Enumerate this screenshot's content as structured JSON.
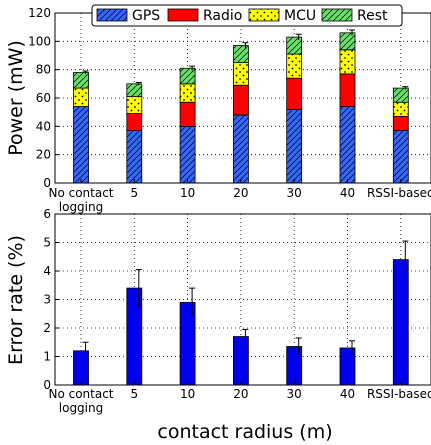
{
  "chart_data": [
    {
      "type": "bar",
      "stacked": true,
      "categories": [
        "No contact\nlogging",
        "5",
        "10",
        "20",
        "30",
        "40",
        "RSSI-based"
      ],
      "series": [
        {
          "name": "GPS",
          "color": "#3366ff",
          "hatch": "diagonal",
          "values": [
            54,
            37,
            40,
            48,
            52,
            54,
            37
          ]
        },
        {
          "name": "Radio",
          "color": "#ff0000",
          "hatch": "none",
          "values": [
            0,
            12,
            17,
            21,
            22,
            23,
            10
          ]
        },
        {
          "name": "MCU",
          "color": "#ffff00",
          "hatch": "dots",
          "values": [
            13,
            12,
            13,
            16,
            17,
            17,
            10
          ]
        },
        {
          "name": "Rest",
          "color": "#66e066",
          "hatch": "diagonal",
          "values": [
            11,
            9,
            11,
            12,
            12,
            12,
            10
          ]
        }
      ],
      "error": [
        1,
        1,
        1.5,
        2,
        2,
        2,
        1
      ],
      "xlabel": "",
      "ylabel": "Power (mW)",
      "ylim": [
        0,
        120
      ],
      "yticks": [
        0,
        20,
        40,
        60,
        80,
        100,
        120
      ],
      "grid": true,
      "legend": "top"
    },
    {
      "type": "bar",
      "categories": [
        "No contact\nlogging",
        "5",
        "10",
        "20",
        "30",
        "40",
        "RSSI-based"
      ],
      "series": [
        {
          "color": "#0000ee",
          "values": [
            1.2,
            3.4,
            2.9,
            1.7,
            1.35,
            1.3,
            4.4
          ]
        }
      ],
      "error": [
        0.3,
        0.65,
        0.5,
        0.25,
        0.3,
        0.25,
        0.65
      ],
      "xlabel": "contact radius (m)",
      "ylabel": "Error rate (%)",
      "ylim": [
        0,
        6
      ],
      "yticks": [
        0,
        1,
        2,
        3,
        4,
        5,
        6
      ],
      "grid": true
    }
  ]
}
